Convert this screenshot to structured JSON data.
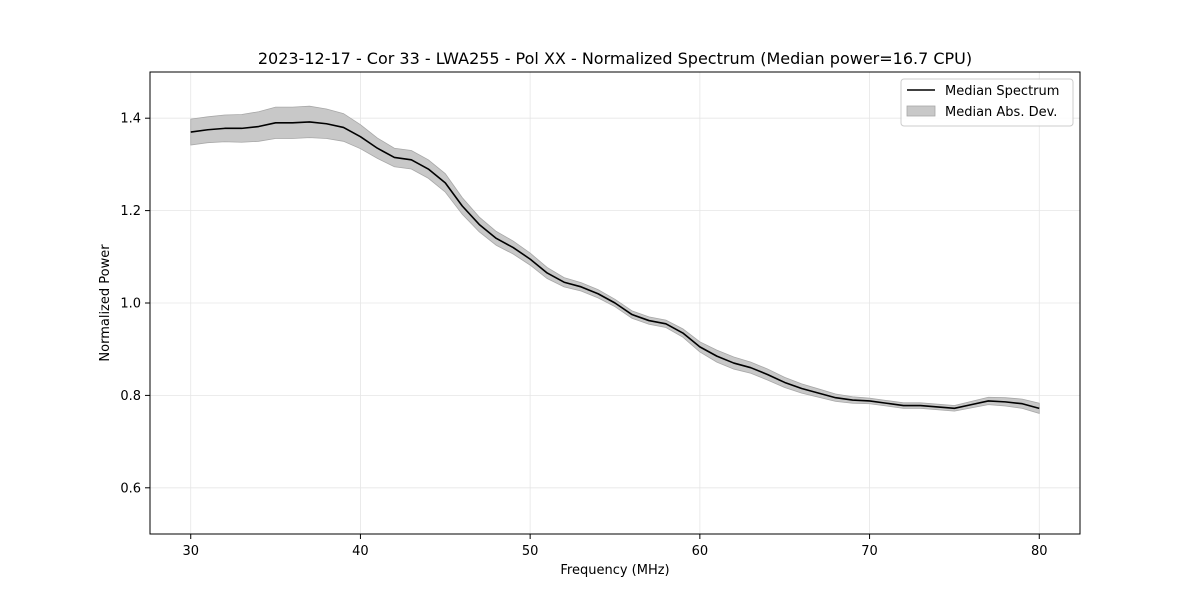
{
  "chart_data": {
    "type": "line",
    "title": "2023-12-17 - Cor 33 - LWA255 - Pol XX - Normalized Spectrum (Median power=16.7 CPU)",
    "xlabel": "Frequency (MHz)",
    "ylabel": "Normalized Power",
    "xlim": [
      27.6,
      82.4
    ],
    "ylim": [
      0.5,
      1.5
    ],
    "xticks": [
      30,
      40,
      50,
      60,
      70,
      80
    ],
    "yticks": [
      0.6,
      0.8,
      1.0,
      1.2,
      1.4
    ],
    "xtick_labels": [
      "30",
      "40",
      "50",
      "60",
      "70",
      "80"
    ],
    "ytick_labels": [
      "0.6",
      "0.8",
      "1.0",
      "1.2",
      "1.4"
    ],
    "grid": true,
    "legend_position": "top-right",
    "series": [
      {
        "name": "Median Spectrum",
        "color": "#000000",
        "x": [
          30,
          31,
          32,
          33,
          34,
          35,
          36,
          37,
          38,
          39,
          40,
          41,
          42,
          43,
          44,
          45,
          46,
          47,
          48,
          49,
          50,
          51,
          52,
          53,
          54,
          55,
          56,
          57,
          58,
          59,
          60,
          61,
          62,
          63,
          64,
          65,
          66,
          67,
          68,
          69,
          70,
          71,
          72,
          73,
          74,
          75,
          76,
          77,
          78,
          79,
          80
        ],
        "values": [
          1.37,
          1.375,
          1.378,
          1.378,
          1.382,
          1.39,
          1.39,
          1.392,
          1.388,
          1.38,
          1.36,
          1.335,
          1.315,
          1.31,
          1.29,
          1.26,
          1.21,
          1.17,
          1.14,
          1.12,
          1.095,
          1.065,
          1.045,
          1.035,
          1.02,
          1.0,
          0.975,
          0.962,
          0.955,
          0.935,
          0.905,
          0.885,
          0.87,
          0.86,
          0.845,
          0.828,
          0.815,
          0.805,
          0.795,
          0.79,
          0.788,
          0.783,
          0.778,
          0.778,
          0.775,
          0.772,
          0.78,
          0.788,
          0.786,
          0.782,
          0.772
        ]
      },
      {
        "name": "Median Abs. Dev.",
        "type": "band",
        "color": "#c8c8c8",
        "x": [
          30,
          31,
          32,
          33,
          34,
          35,
          36,
          37,
          38,
          39,
          40,
          41,
          42,
          43,
          44,
          45,
          46,
          47,
          48,
          49,
          50,
          51,
          52,
          53,
          54,
          55,
          56,
          57,
          58,
          59,
          60,
          61,
          62,
          63,
          64,
          65,
          66,
          67,
          68,
          69,
          70,
          71,
          72,
          73,
          74,
          75,
          76,
          77,
          78,
          79,
          80
        ],
        "deviation": [
          0.028,
          0.028,
          0.029,
          0.03,
          0.032,
          0.034,
          0.034,
          0.034,
          0.032,
          0.03,
          0.026,
          0.022,
          0.02,
          0.02,
          0.02,
          0.02,
          0.018,
          0.016,
          0.015,
          0.014,
          0.013,
          0.012,
          0.01,
          0.009,
          0.009,
          0.008,
          0.008,
          0.008,
          0.008,
          0.009,
          0.011,
          0.013,
          0.013,
          0.012,
          0.012,
          0.011,
          0.01,
          0.009,
          0.008,
          0.007,
          0.006,
          0.006,
          0.006,
          0.006,
          0.006,
          0.006,
          0.007,
          0.008,
          0.009,
          0.01,
          0.011
        ]
      }
    ]
  }
}
